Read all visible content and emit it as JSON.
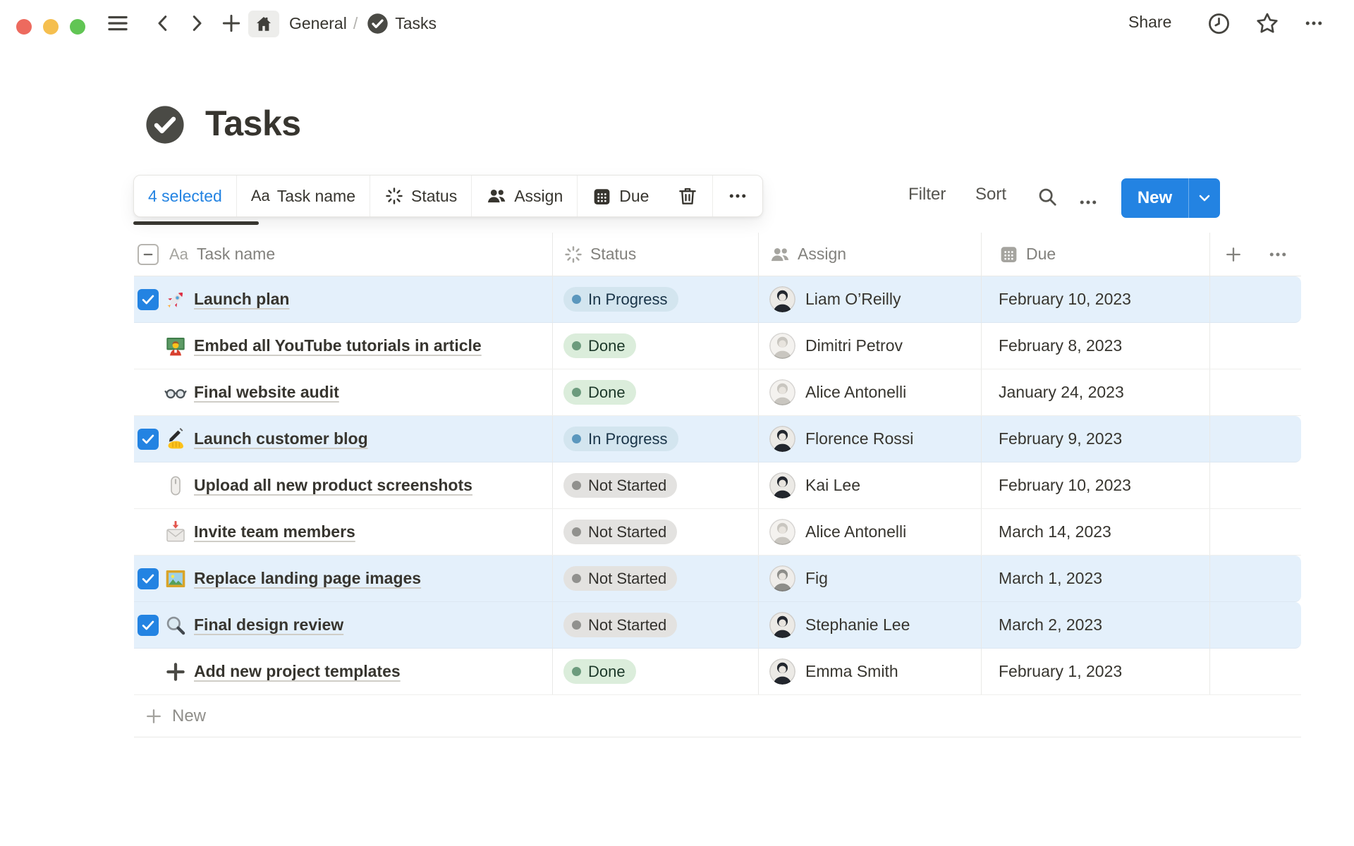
{
  "window": {
    "traffic_lights": {
      "close": "#ed6a5e",
      "minimize": "#f5bf4f",
      "zoom": "#61c554"
    }
  },
  "topbar": {
    "breadcrumb": {
      "root": "General",
      "separator": "/",
      "page": "Tasks"
    },
    "share_label": "Share"
  },
  "page": {
    "title": "Tasks"
  },
  "selection_toolbar": {
    "selected_label": "4 selected",
    "field_pills": [
      {
        "icon": "aa-text",
        "prefix": "Aa",
        "label": "Task name"
      },
      {
        "icon": "status-spinner",
        "label": "Status"
      },
      {
        "icon": "people",
        "label": "Assign"
      },
      {
        "icon": "calendar",
        "label": "Due"
      }
    ]
  },
  "view_controls": {
    "filter_label": "Filter",
    "sort_label": "Sort",
    "new_button_label": "New"
  },
  "table": {
    "header": {
      "name_prefix": "Aa",
      "columns": [
        "Task name",
        "Status",
        "Assign",
        "Due"
      ]
    },
    "rows": [
      {
        "checked": true,
        "icon": "rocket",
        "task": "Launch plan",
        "status": "In Progress",
        "assignee": "Liam O’Reilly",
        "avatar_tone": "dark",
        "due": "February 10, 2023"
      },
      {
        "checked": false,
        "icon": "teacher",
        "task": "Embed all YouTube tutorials in article",
        "status": "Done",
        "assignee": "Dimitri Petrov",
        "avatar_tone": "light",
        "due": "February 8, 2023"
      },
      {
        "checked": false,
        "icon": "glasses",
        "task": "Final website audit",
        "status": "Done",
        "assignee": "Alice Antonelli",
        "avatar_tone": "light",
        "due": "January 24, 2023"
      },
      {
        "checked": true,
        "icon": "writing-hand",
        "task": "Launch customer blog",
        "status": "In Progress",
        "assignee": "Florence Rossi",
        "avatar_tone": "dark",
        "due": "February 9, 2023"
      },
      {
        "checked": false,
        "icon": "mouse",
        "task": "Upload all new product screenshots",
        "status": "Not Started",
        "assignee": "Kai Lee",
        "avatar_tone": "dark",
        "due": "February 10, 2023"
      },
      {
        "checked": false,
        "icon": "envelope",
        "task": "Invite team members",
        "status": "Not Started",
        "assignee": "Alice Antonelli",
        "avatar_tone": "light",
        "due": "March 14, 2023"
      },
      {
        "checked": true,
        "icon": "picture",
        "task": "Replace landing page images",
        "status": "Not Started",
        "assignee": "Fig",
        "avatar_tone": "gray",
        "due": "March 1, 2023"
      },
      {
        "checked": true,
        "icon": "magnifier",
        "task": "Final design review",
        "status": "Not Started",
        "assignee": "Stephanie Lee",
        "avatar_tone": "dark",
        "due": "March 2, 2023"
      },
      {
        "checked": false,
        "icon": "plus-task",
        "task": "Add new project templates",
        "status": "Done",
        "assignee": "Emma Smith",
        "avatar_tone": "dark",
        "due": "February 1, 2023"
      }
    ],
    "new_row_label": "New"
  },
  "status_styles": {
    "In Progress": {
      "bg": "#d3e5ef",
      "dot": "#5b97bd",
      "text": "#183347"
    },
    "Done": {
      "bg": "#dbeddb",
      "dot": "#6c9b7d",
      "text": "#1c3829"
    },
    "Not Started": {
      "bg": "#e3e2e0",
      "dot": "#91918e",
      "text": "#32302c"
    }
  },
  "colors": {
    "accent": "#2383e2",
    "selected_row": "rgba(35,131,226,0.12)",
    "text_primary": "#37352f",
    "text_secondary": "#82817d",
    "divider": "#e9e9e7"
  }
}
